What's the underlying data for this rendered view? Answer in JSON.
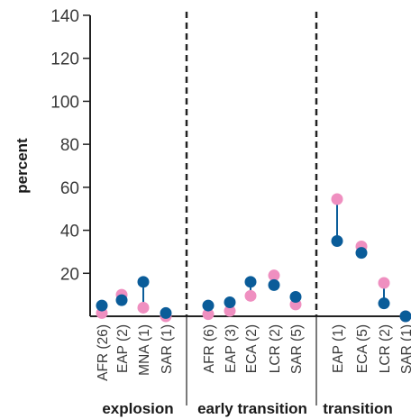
{
  "chart_data": {
    "type": "scatter",
    "ylabel": "percent",
    "ylim": [
      0,
      140
    ],
    "yticks": [
      20,
      40,
      60,
      80,
      100,
      120,
      140
    ],
    "grid": false,
    "colors": {
      "series_a": "#0a5c99",
      "series_b": "#ef8fc0",
      "connector": "#0a5c99",
      "axis": "#222222",
      "divider": "#222222"
    },
    "groups": [
      {
        "label": "explosion",
        "categories": [
          {
            "label": "AFR (26)",
            "dark": 5,
            "pink": 1.5
          },
          {
            "label": "EAP (2)",
            "dark": 7.5,
            "pink": 10
          },
          {
            "label": "MNA (1)",
            "dark": 16,
            "pink": 4
          },
          {
            "label": "SAR (1)",
            "dark": 1.5,
            "pink": 0
          }
        ]
      },
      {
        "label": "early transition",
        "categories": [
          {
            "label": "AFR (6)",
            "dark": 5,
            "pink": 1
          },
          {
            "label": "EAP (3)",
            "dark": 6.5,
            "pink": 2.5
          },
          {
            "label": "ECA (2)",
            "dark": 16,
            "pink": 9.5
          },
          {
            "label": "LCR (2)",
            "dark": 14.5,
            "pink": 19
          },
          {
            "label": "SAR (5)",
            "dark": 9,
            "pink": 5.5
          }
        ]
      },
      {
        "label": "transition",
        "categories": [
          {
            "label": "EAP (1)",
            "dark": 35,
            "pink": 54.5
          },
          {
            "label": "ECA (5)",
            "dark": 29.5,
            "pink": 32.5
          },
          {
            "label": "LCR (2)",
            "dark": 6,
            "pink": 15.5
          },
          {
            "label": "SAR (1)",
            "dark": 0,
            "pink": 0
          }
        ]
      }
    ]
  }
}
